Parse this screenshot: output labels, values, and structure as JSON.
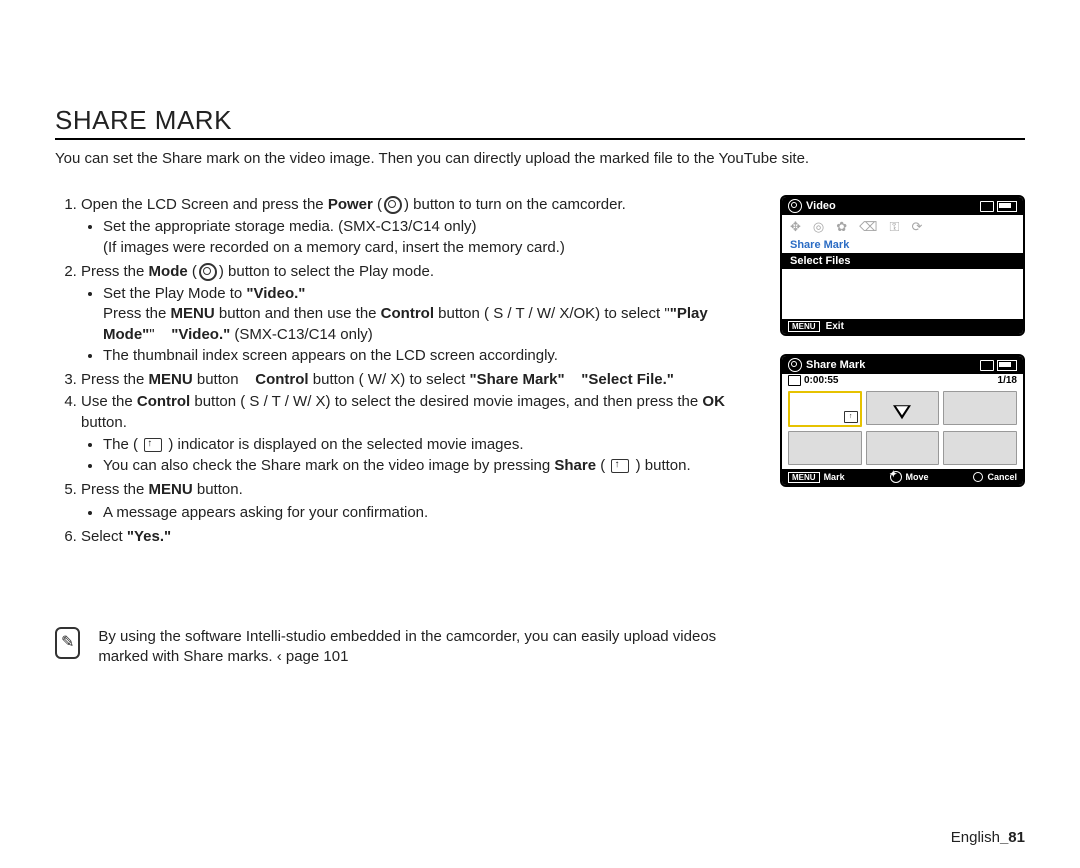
{
  "title": "SHARE MARK",
  "intro": "You can set the Share mark on the video image. Then you can directly upload the marked file to the YouTube site.",
  "steps": {
    "s1": {
      "pre": "Open the LCD Screen and press the ",
      "power": "Power",
      "post": " button to turn on the camcorder.",
      "b1": "Set the appropriate storage media. (SMX-C13/C14 only)",
      "b1p": "(If images were recorded on a memory card, insert the memory card.)"
    },
    "s2": {
      "pre": "Press the ",
      "mode": "Mode",
      "post": " button to select the Play mode.",
      "b1a": "Set the Play Mode to ",
      "b1b": "\"Video.\"",
      "b1c": "Press the ",
      "b1d": "MENU",
      "b1e": " button and then use the ",
      "b1f": "Control",
      "b1g": " button ( S / T /  W/  X/OK) to select ",
      "b1h": "\"Play Mode\"",
      "b1i": "\"Video.\"",
      "b1j": " (SMX-C13/C14 only)",
      "b2": "The thumbnail index screen appears on the LCD screen accordingly."
    },
    "s3": {
      "pre": "Press the ",
      "menu": "MENU",
      "mid": " button ",
      "ctrl": "Control",
      "mid2": " button ( W/  X) to select ",
      "sm": "\"Share Mark\"",
      "sf": "\"Select File.\""
    },
    "s4": {
      "pre": "Use the ",
      "ctrl": "Control",
      "mid": " button ( S / T /  W/  X) to select the desired movie images, and then press the ",
      "ok": "OK",
      "post": " button.",
      "b1": "The (        ) indicator is displayed on the selected movie images.",
      "b2a": "You can also check the Share mark on the video image by pressing ",
      "b2b": "Share",
      "b2c": " button."
    },
    "s5": {
      "pre": "Press the ",
      "menu": "MENU",
      "post": " button.",
      "b1": "A message appears asking for your confirmation."
    },
    "s6": {
      "pre": "Select ",
      "yes": "\"Yes.\""
    }
  },
  "note": "By using the software Intelli-studio embedded in the camcorder, you can easily upload videos marked with Share marks.  ‹ page 101",
  "footer_lang": "English",
  "footer_page": "_81",
  "screen1": {
    "title": "Video",
    "share_label": "Share Mark",
    "select_files": "Select Files",
    "menu": "MENU",
    "exit": "Exit"
  },
  "screen2": {
    "title": "Share Mark",
    "time": "0:00:55",
    "counter": "1/18",
    "menu": "MENU",
    "mark": "Mark",
    "move": "Move",
    "cancel": "Cancel"
  }
}
